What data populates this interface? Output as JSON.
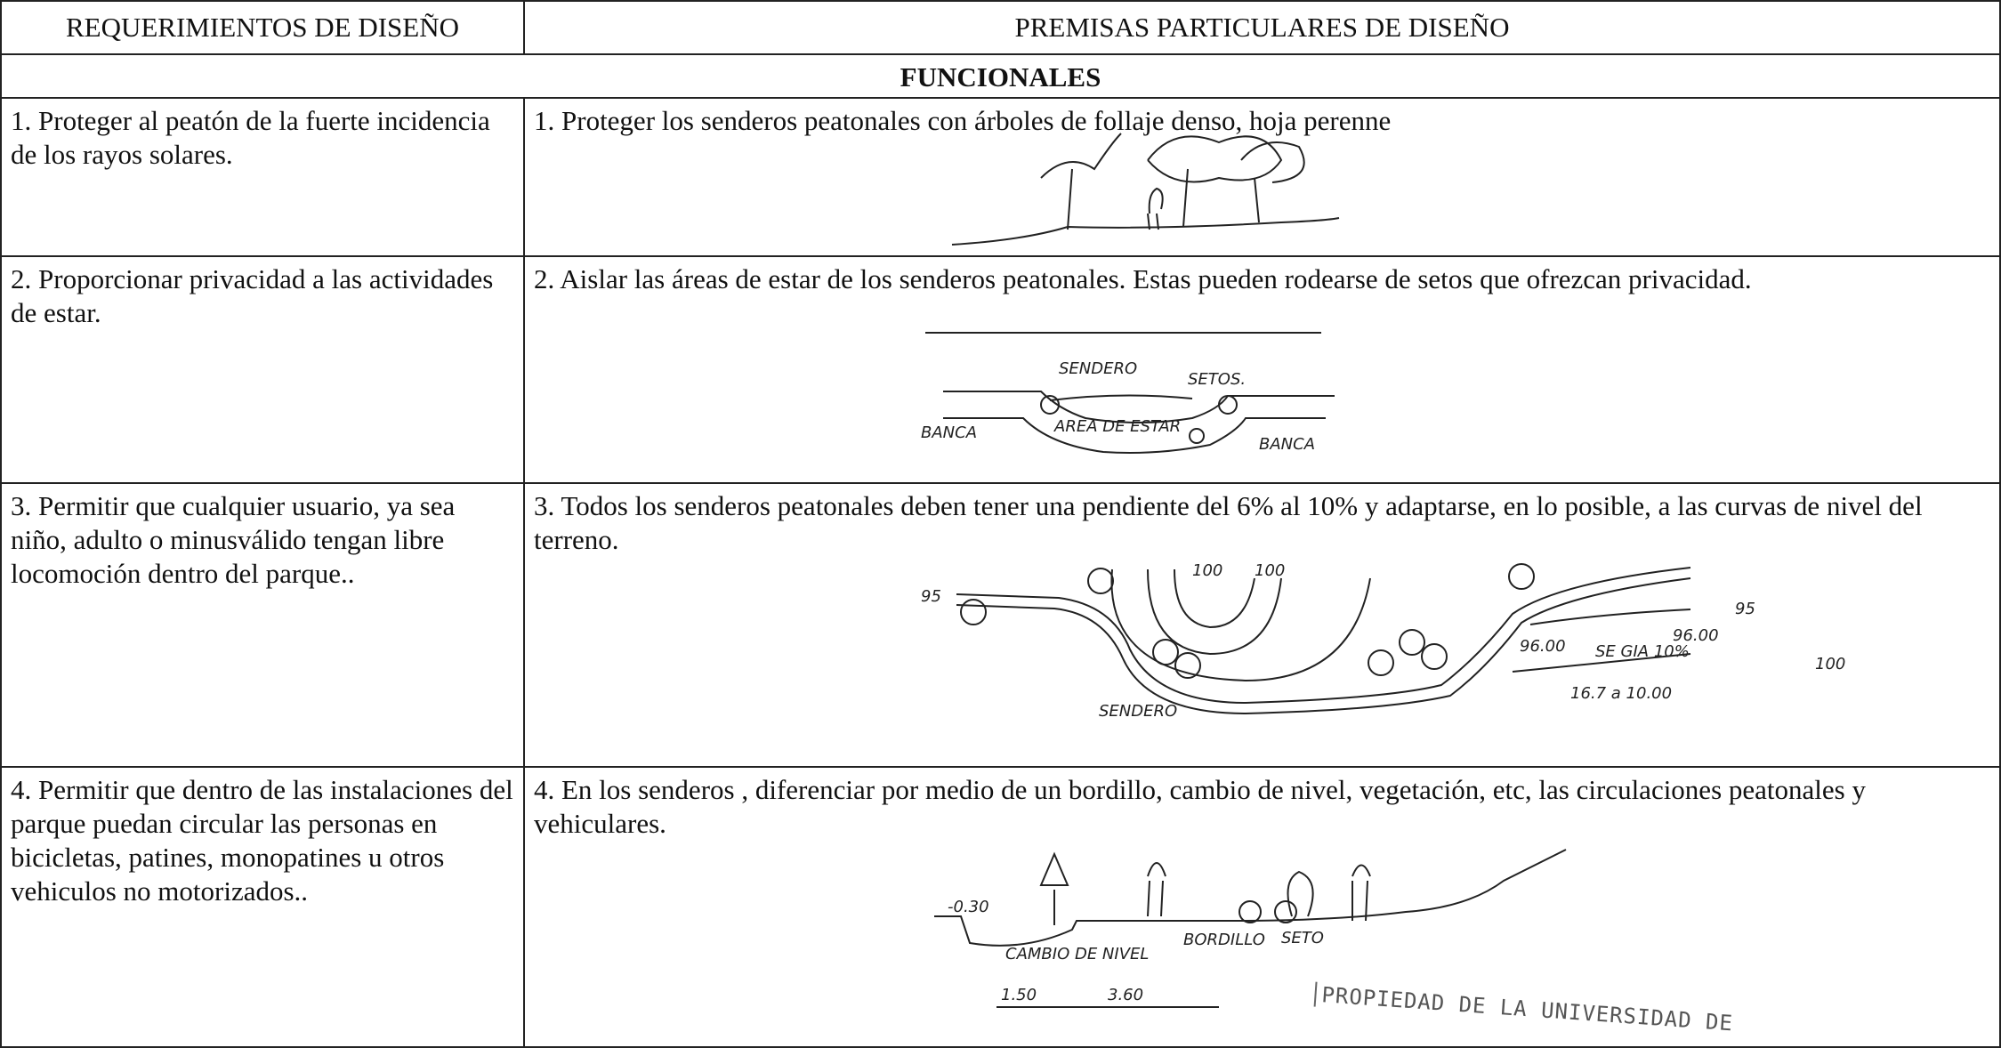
{
  "table": {
    "headers": [
      "REQUERIMIENTOS DE DISEÑO",
      "PREMISAS PARTICULARES DE DISEÑO"
    ],
    "section": "FUNCIONALES",
    "rows": [
      {
        "requirement": "1.  Proteger al peatón de la fuerte incidencia de los rayos solares.",
        "premise": "1.  Proteger los senderos peatonales con árboles de follaje denso, hoja perenne"
      },
      {
        "requirement": "2.  Proporcionar privacidad a las actividades de estar.",
        "premise": "2.  Aislar las áreas de estar de los senderos peatonales.  Estas pueden rodearse de setos que ofrezcan privacidad.",
        "sketch_labels": [
          "SENDERO",
          "SETOS.",
          "AREA DE ESTAR",
          "BANCA",
          "BANCA"
        ]
      },
      {
        "requirement": "3.  Permitir que cualquier usuario, ya sea niño, adulto o minusválido tengan libre locomoción dentro del parque..",
        "premise": "3.  Todos los senderos peatonales deben tener una pendiente del 6% al 10% y adaptarse, en lo posible, a las curvas de nivel del terreno.",
        "sketch_labels": [
          "95",
          "100",
          "100",
          "95",
          "SENDERO",
          "96.00",
          "SE GIA 10%",
          "96.00",
          "100",
          "16.7 a 10.00"
        ]
      },
      {
        "requirement": "4.  Permitir que dentro de las instalaciones del parque puedan circular las personas en bicicletas, patines, monopatines u otros vehiculos no motorizados..",
        "premise": "4.  En los senderos , diferenciar por medio de un bordillo, cambio de nivel, vegetación, etc, las circulaciones peatonales y vehiculares.",
        "sketch_labels": [
          "-0.30",
          "CAMBIO DE NIVEL",
          "1.50",
          "3.60",
          "BORDILLO",
          "SETO"
        ]
      }
    ]
  },
  "stamp": "PROPIEDAD DE LA UNIVERSIDAD DE"
}
